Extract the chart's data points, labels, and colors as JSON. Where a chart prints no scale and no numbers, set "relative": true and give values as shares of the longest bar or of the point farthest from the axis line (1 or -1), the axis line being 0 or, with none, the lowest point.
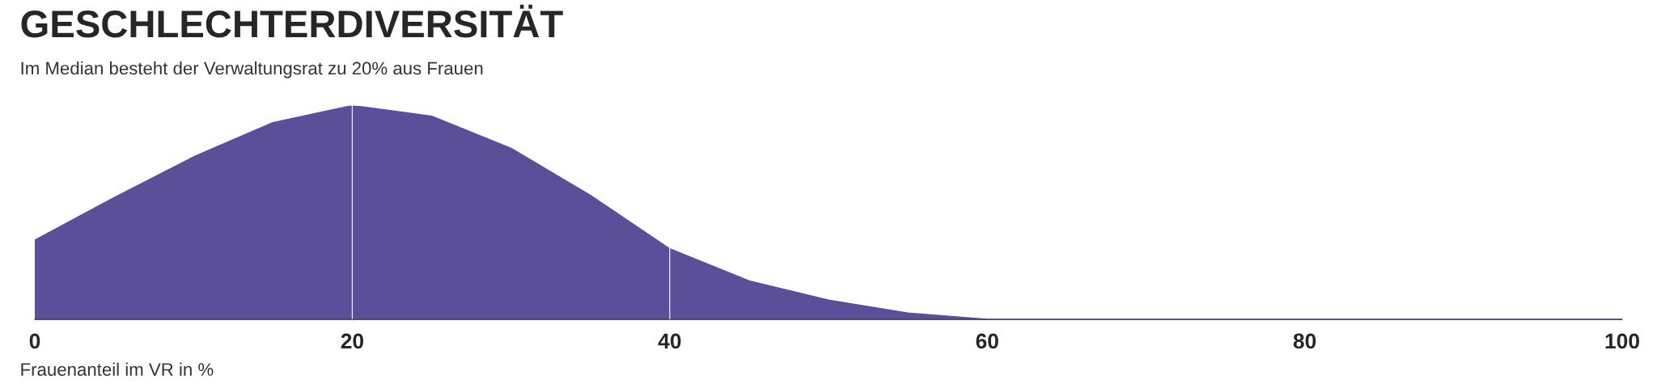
{
  "chart_data": {
    "type": "area",
    "title": "GESCHLECHTERDIVERSITÄT",
    "subtitle": "Im Median besteht der Verwaltungsrat zu 20% aus Frauen",
    "xlabel": "Frauenanteil im VR in %",
    "relative": true,
    "x": [
      0,
      5,
      10,
      15,
      20,
      25,
      30,
      35,
      40,
      45,
      50,
      55,
      60,
      70,
      80,
      90,
      100
    ],
    "series": [
      {
        "color": "#5b4f9a",
        "values": [
          0.37,
          0.57,
          0.76,
          0.92,
          1.0,
          0.95,
          0.8,
          0.58,
          0.33,
          0.18,
          0.09,
          0.03,
          0.0,
          0.0,
          0.0,
          0.0,
          0.0
        ]
      }
    ],
    "xlim": [
      0,
      100
    ],
    "xticks": [
      0,
      20,
      40,
      60,
      80,
      100
    ],
    "ref_lines": [
      {
        "axis": "x",
        "value": 20,
        "color": "#ffffff"
      },
      {
        "axis": "x",
        "value": 40,
        "color": "#ffffff"
      }
    ],
    "grid": false,
    "legend": false
  }
}
